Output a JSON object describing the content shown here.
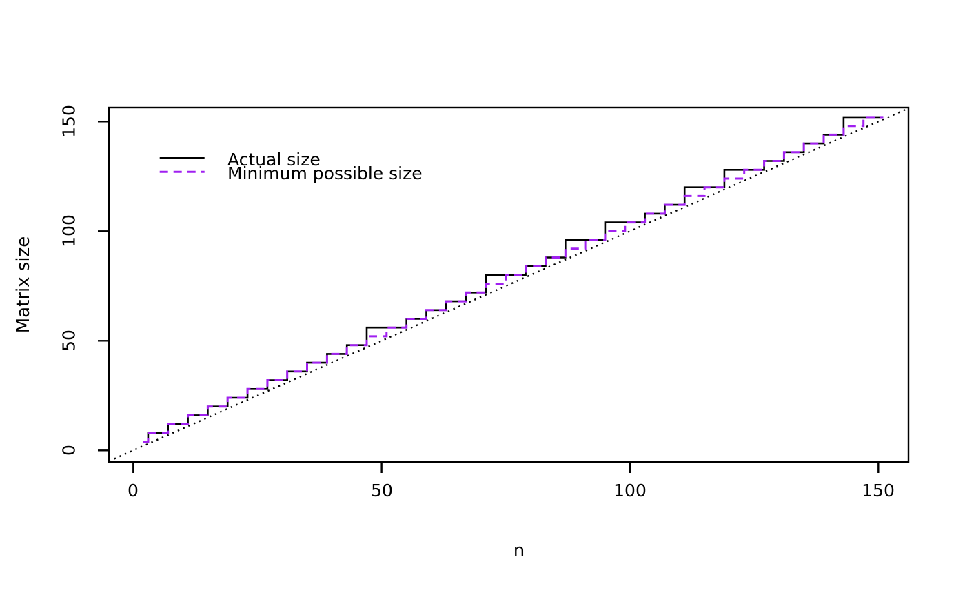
{
  "figure": {
    "background_color": "#ffffff",
    "frame_color": "#000000"
  },
  "chart_data": {
    "type": "line",
    "subtype": "step-function",
    "title": "",
    "xlabel": "n",
    "ylabel": "Matrix size",
    "x_ticks": [
      "0",
      "50",
      "100",
      "150"
    ],
    "y_ticks": [
      "0",
      "50",
      "100",
      "150"
    ],
    "x_tick_values": [
      0,
      50,
      100,
      150
    ],
    "y_tick_values": [
      0,
      50,
      100,
      150
    ],
    "xlim": [
      -4.9,
      156
    ],
    "ylim": [
      -5.2,
      156.5
    ],
    "grid": false,
    "box": "full-rectangle",
    "legend_position": "top-left-inside",
    "series": [
      {
        "name": "Actual size",
        "color": "#000000",
        "line_style": "solid",
        "draw": "steps",
        "flats": [
          [
            2,
            3,
            4
          ],
          [
            3,
            7,
            8
          ],
          [
            7,
            11,
            12
          ],
          [
            11,
            15,
            16
          ],
          [
            15,
            19,
            20
          ],
          [
            19,
            23,
            24
          ],
          [
            23,
            27,
            28
          ],
          [
            27,
            31,
            32
          ],
          [
            31,
            35,
            36
          ],
          [
            35,
            39,
            40
          ],
          [
            39,
            43,
            44
          ],
          [
            43,
            47,
            48
          ],
          [
            47,
            55,
            56
          ],
          [
            55,
            59,
            60
          ],
          [
            59,
            63,
            64
          ],
          [
            63,
            67,
            68
          ],
          [
            67,
            71,
            72
          ],
          [
            71,
            79,
            80
          ],
          [
            79,
            83,
            84
          ],
          [
            83,
            87,
            88
          ],
          [
            87,
            95,
            96
          ],
          [
            95,
            103,
            104
          ],
          [
            103,
            107,
            108
          ],
          [
            107,
            111,
            112
          ],
          [
            111,
            119,
            120
          ],
          [
            119,
            127,
            128
          ],
          [
            127,
            131,
            132
          ],
          [
            131,
            135,
            136
          ],
          [
            135,
            139,
            140
          ],
          [
            139,
            143,
            144
          ],
          [
            143,
            151,
            152
          ]
        ]
      },
      {
        "name": "Minimum possible size",
        "color": "#A020F0",
        "line_style": "dashed",
        "draw": "steps",
        "flats": [
          [
            2,
            3,
            4
          ],
          [
            3,
            7,
            8
          ],
          [
            7,
            11,
            12
          ],
          [
            11,
            15,
            16
          ],
          [
            15,
            19,
            20
          ],
          [
            19,
            23,
            24
          ],
          [
            23,
            27,
            28
          ],
          [
            27,
            31,
            32
          ],
          [
            31,
            35,
            36
          ],
          [
            35,
            39,
            40
          ],
          [
            39,
            43,
            44
          ],
          [
            43,
            47,
            48
          ],
          [
            47,
            51,
            52
          ],
          [
            51,
            55,
            56
          ],
          [
            55,
            59,
            60
          ],
          [
            59,
            63,
            64
          ],
          [
            63,
            67,
            68
          ],
          [
            67,
            71,
            72
          ],
          [
            71,
            75,
            76
          ],
          [
            75,
            79,
            80
          ],
          [
            79,
            83,
            84
          ],
          [
            83,
            87,
            88
          ],
          [
            87,
            91,
            92
          ],
          [
            91,
            95,
            96
          ],
          [
            95,
            99,
            100
          ],
          [
            99,
            103,
            104
          ],
          [
            103,
            107,
            108
          ],
          [
            107,
            111,
            112
          ],
          [
            111,
            115,
            116
          ],
          [
            115,
            119,
            120
          ],
          [
            119,
            123,
            124
          ],
          [
            123,
            127,
            128
          ],
          [
            127,
            131,
            132
          ],
          [
            131,
            135,
            136
          ],
          [
            135,
            139,
            140
          ],
          [
            139,
            143,
            144
          ],
          [
            143,
            147,
            148
          ],
          [
            147,
            151,
            152
          ]
        ]
      }
    ],
    "reference_line": {
      "type": "identity",
      "color": "#000000",
      "line_style": "dotted",
      "from": -4.9,
      "to": 156
    }
  }
}
